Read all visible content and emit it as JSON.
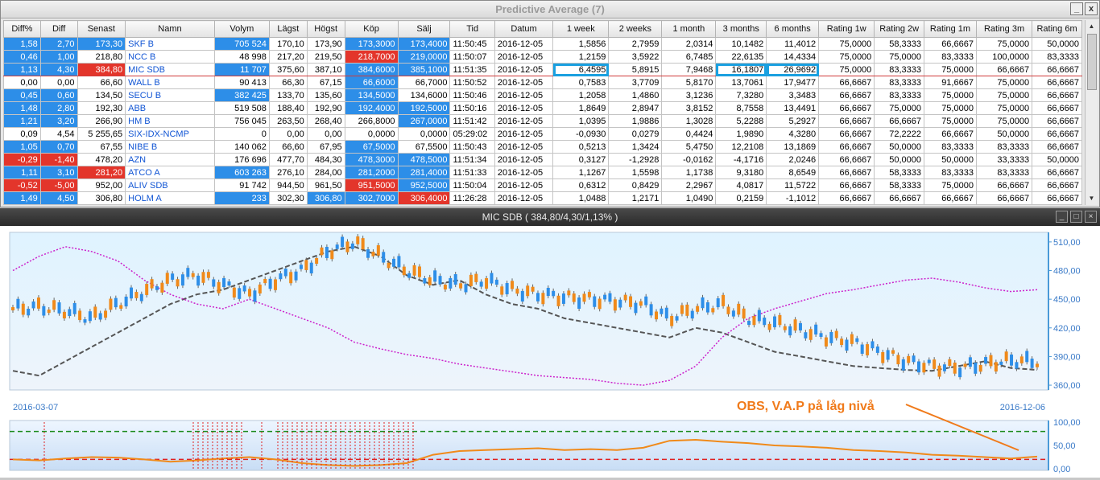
{
  "window": {
    "title": "Predictive Average (7)",
    "min_label": "_",
    "close_label": "x"
  },
  "table": {
    "columns": [
      "Diff%",
      "Diff",
      "Senast",
      "Namn",
      "Volym",
      "Lägst",
      "Högst",
      "Köp",
      "Sälj",
      "Tid",
      "Datum",
      "1 week",
      "2 weeks",
      "1 month",
      "3 months",
      "6 months",
      "Rating 1w",
      "Rating 2w",
      "Rating 1m",
      "Rating 3m",
      "Rating 6m"
    ],
    "rows": [
      {
        "c": [
          "1,58",
          "2,70",
          "173,30",
          "SKF B",
          "705 524",
          "170,10",
          "173,90",
          "173,3000",
          "173,4000",
          "11:50:45",
          "2016-12-05",
          "1,5856",
          "2,7959",
          "2,0314",
          "10,1482",
          "11,4012",
          "75,0000",
          "58,3333",
          "66,6667",
          "75,0000",
          "50,0000"
        ],
        "s": {
          "0": "up",
          "1": "up",
          "2": "up",
          "4": "up",
          "7": "up",
          "8": "up"
        }
      },
      {
        "c": [
          "0,46",
          "1,00",
          "218,80",
          "NCC B",
          "48 998",
          "217,20",
          "219,50",
          "218,7000",
          "219,0000",
          "11:50:07",
          "2016-12-05",
          "1,2159",
          "3,5922",
          "6,7485",
          "22,6135",
          "14,4334",
          "75,0000",
          "75,0000",
          "83,3333",
          "100,0000",
          "83,3333"
        ],
        "s": {
          "0": "up",
          "1": "up",
          "7": "down",
          "8": "up"
        }
      },
      {
        "c": [
          "1,13",
          "4,30",
          "384,80",
          "MIC SDB",
          "11 707",
          "375,60",
          "387,10",
          "384,6000",
          "385,1000",
          "11:51:35",
          "2016-12-05",
          "6,4595",
          "5,8915",
          "7,9468",
          "16,1807",
          "26,9692",
          "75,0000",
          "83,3333",
          "75,0000",
          "66,6667",
          "66,6667"
        ],
        "s": {
          "0": "up",
          "1": "up",
          "2": "down",
          "4": "up",
          "7": "up",
          "8": "up"
        },
        "sel": true
      },
      {
        "c": [
          "0,00",
          "0,00",
          "66,60",
          "WALL B",
          "90 413",
          "66,30",
          "67,15",
          "66,6000",
          "66,7000",
          "11:50:52",
          "2016-12-05",
          "0,7583",
          "3,7709",
          "5,8170",
          "13,7061",
          "17,9477",
          "66,6667",
          "83,3333",
          "91,6667",
          "75,0000",
          "66,6667"
        ],
        "s": {
          "7": "up"
        }
      },
      {
        "c": [
          "0,45",
          "0,60",
          "134,50",
          "SECU B",
          "382 425",
          "133,70",
          "135,60",
          "134,5000",
          "134,6000",
          "11:50:46",
          "2016-12-05",
          "1,2058",
          "1,4860",
          "3,1236",
          "7,3280",
          "3,3483",
          "66,6667",
          "83,3333",
          "75,0000",
          "75,0000",
          "66,6667"
        ],
        "s": {
          "0": "up",
          "1": "up",
          "4": "up",
          "7": "up"
        }
      },
      {
        "c": [
          "1,48",
          "2,80",
          "192,30",
          "ABB",
          "519 508",
          "188,40",
          "192,90",
          "192,4000",
          "192,5000",
          "11:50:16",
          "2016-12-05",
          "1,8649",
          "2,8947",
          "3,8152",
          "8,7558",
          "13,4491",
          "66,6667",
          "75,0000",
          "75,0000",
          "75,0000",
          "66,6667"
        ],
        "s": {
          "0": "up",
          "1": "up",
          "7": "up",
          "8": "up"
        }
      },
      {
        "c": [
          "1,21",
          "3,20",
          "266,90",
          "HM B",
          "756 045",
          "263,50",
          "268,40",
          "266,8000",
          "267,0000",
          "11:51:42",
          "2016-12-05",
          "1,0395",
          "1,9886",
          "1,3028",
          "5,2288",
          "5,2927",
          "66,6667",
          "66,6667",
          "75,0000",
          "75,0000",
          "66,6667"
        ],
        "s": {
          "0": "up",
          "1": "up",
          "8": "up"
        }
      },
      {
        "c": [
          "0,09",
          "4,54",
          "5 255,65",
          "SIX-IDX-NCMP",
          "0",
          "0,00",
          "0,00",
          "0,0000",
          "0,0000",
          "05:29:02",
          "2016-12-05",
          "-0,0930",
          "0,0279",
          "0,4424",
          "1,9890",
          "4,3280",
          "66,6667",
          "72,2222",
          "66,6667",
          "50,0000",
          "66,6667"
        ],
        "s": {}
      },
      {
        "c": [
          "1,05",
          "0,70",
          "67,55",
          "NIBE B",
          "140 062",
          "66,60",
          "67,95",
          "67,5000",
          "67,5500",
          "11:50:43",
          "2016-12-05",
          "0,5213",
          "1,3424",
          "5,4750",
          "12,2108",
          "13,1869",
          "66,6667",
          "50,0000",
          "83,3333",
          "83,3333",
          "66,6667"
        ],
        "s": {
          "0": "up",
          "1": "up",
          "7": "up"
        }
      },
      {
        "c": [
          "-0,29",
          "-1,40",
          "478,20",
          "AZN",
          "176 696",
          "477,70",
          "484,30",
          "478,3000",
          "478,5000",
          "11:51:34",
          "2016-12-05",
          "0,3127",
          "-1,2928",
          "-0,0162",
          "-4,1716",
          "2,0246",
          "66,6667",
          "50,0000",
          "50,0000",
          "33,3333",
          "50,0000"
        ],
        "s": {
          "0": "down",
          "1": "down",
          "7": "up",
          "8": "up"
        }
      },
      {
        "c": [
          "1,11",
          "3,10",
          "281,20",
          "ATCO A",
          "603 263",
          "276,10",
          "284,00",
          "281,2000",
          "281,4000",
          "11:51:33",
          "2016-12-05",
          "1,1267",
          "1,5598",
          "1,1738",
          "9,3180",
          "8,6549",
          "66,6667",
          "58,3333",
          "83,3333",
          "83,3333",
          "66,6667"
        ],
        "s": {
          "0": "up",
          "1": "up",
          "2": "down",
          "4": "up",
          "7": "up",
          "8": "up"
        }
      },
      {
        "c": [
          "-0,52",
          "-5,00",
          "952,00",
          "ALIV SDB",
          "91 742",
          "944,50",
          "961,50",
          "951,5000",
          "952,5000",
          "11:50:04",
          "2016-12-05",
          "0,6312",
          "0,8429",
          "2,2967",
          "4,0817",
          "11,5722",
          "66,6667",
          "58,3333",
          "75,0000",
          "66,6667",
          "66,6667"
        ],
        "s": {
          "0": "down",
          "1": "down",
          "7": "down",
          "8": "up"
        }
      },
      {
        "c": [
          "1,49",
          "4,50",
          "306,80",
          "HOLM A",
          "233",
          "302,30",
          "306,80",
          "302,7000",
          "306,4000",
          "11:26:28",
          "2016-12-05",
          "1,0488",
          "1,2171",
          "1,0490",
          "0,2159",
          "-1,1012",
          "66,6667",
          "66,6667",
          "66,6667",
          "66,6667",
          "66,6667"
        ],
        "s": {
          "0": "up",
          "1": "up",
          "4": "up",
          "6": "up",
          "7": "up",
          "8": "down"
        }
      }
    ]
  },
  "chart": {
    "title": "MIC SDB ( 384,80/4,30/1,13% )",
    "date_start": "2016-03-07",
    "date_end": "2016-12-06",
    "annotation": "OBS, V.A.P på låg nivå",
    "y_ticks": [
      "510,00",
      "480,00",
      "450,00",
      "420,00",
      "390,00",
      "360,00"
    ],
    "lower_ticks": [
      "100,00",
      "50,00",
      "0,00"
    ]
  },
  "chart_data": {
    "type": "line",
    "title": "MIC SDB ( 384,80/4,30/1,13% )",
    "x_range": [
      "2016-03-07",
      "2016-12-06"
    ],
    "ylim": [
      355,
      520
    ],
    "series": [
      {
        "values": [
          440,
          442,
          438,
          430,
          445,
          458,
          470,
          475,
          465,
          455,
          470,
          480,
          500,
          510,
          495,
          480,
          470,
          465,
          470,
          460,
          455,
          452,
          450,
          448,
          445,
          430,
          440,
          445,
          430,
          425,
          418,
          410,
          405,
          395,
          385,
          380,
          378,
          382,
          386,
          384.8
        ]
      },
      {
        "values": [
          375,
          370,
          385,
          400,
          415,
          430,
          445,
          455,
          460,
          470,
          480,
          490,
          500,
          505,
          495,
          475,
          465,
          470,
          455,
          445,
          440,
          430,
          425,
          420,
          415,
          410,
          420,
          415,
          405,
          395,
          390,
          385,
          380,
          378,
          376,
          375,
          380,
          385,
          378,
          376
        ]
      },
      {
        "values": [
          480,
          495,
          505,
          500,
          490,
          470,
          455,
          445,
          440,
          450,
          440,
          430,
          420,
          405,
          398,
          392,
          388,
          382,
          378,
          374,
          370,
          368,
          366,
          362,
          360,
          365,
          380,
          410,
          430,
          440,
          448,
          456,
          460,
          465,
          470,
          472,
          468,
          462,
          458,
          460
        ]
      }
    ],
    "lower": {
      "ylim": [
        0,
        100
      ],
      "values": [
        20,
        18,
        22,
        25,
        24,
        20,
        15,
        18,
        22,
        25,
        20,
        12,
        8,
        6,
        8,
        12,
        30,
        38,
        40,
        42,
        44,
        40,
        42,
        40,
        45,
        60,
        62,
        58,
        55,
        50,
        48,
        45,
        40,
        38,
        35,
        30,
        28,
        25,
        22,
        26
      ]
    }
  }
}
